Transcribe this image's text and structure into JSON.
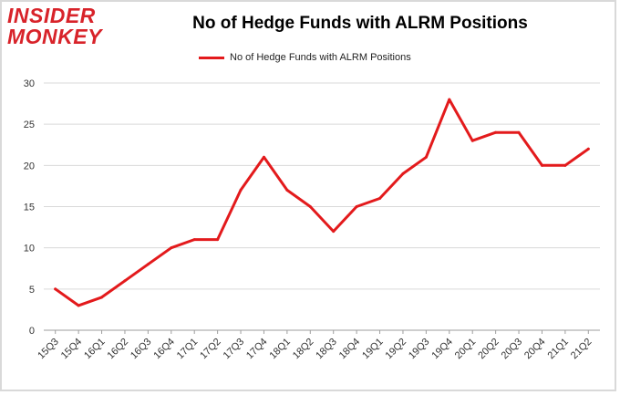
{
  "logo": {
    "line1": "INSIDER",
    "line2": "MONKEY"
  },
  "chart_data": {
    "type": "line",
    "title": "No of Hedge Funds with ALRM Positions",
    "categories": [
      "15Q3",
      "15Q4",
      "16Q1",
      "16Q2",
      "16Q3",
      "16Q4",
      "17Q1",
      "17Q2",
      "17Q3",
      "17Q4",
      "18Q1",
      "18Q2",
      "18Q3",
      "18Q4",
      "19Q1",
      "19Q2",
      "19Q3",
      "19Q4",
      "20Q1",
      "20Q2",
      "20Q3",
      "20Q4",
      "21Q1",
      "21Q2"
    ],
    "series": [
      {
        "name": "No of Hedge Funds with ALRM Positions",
        "color": "#e31a1c",
        "values": [
          5,
          3,
          4,
          6,
          8,
          10,
          11,
          11,
          17,
          21,
          17,
          15,
          12,
          15,
          16,
          19,
          21,
          28,
          23,
          24,
          24,
          20,
          20,
          22
        ]
      }
    ],
    "ylim": [
      0,
      30
    ],
    "yticks": [
      0,
      5,
      10,
      15,
      20,
      25,
      30
    ],
    "xlabel": "",
    "ylabel": "",
    "grid": true,
    "legend_position": "top"
  }
}
